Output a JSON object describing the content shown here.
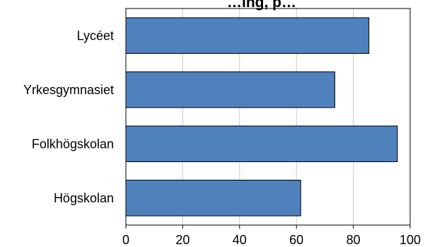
{
  "chart_data": {
    "type": "bar",
    "orientation": "horizontal",
    "title": "…ing, p…",
    "categories": [
      "Lycéet",
      "Yrkesgymnasiet",
      "Folkhögskolan",
      "Högskolan"
    ],
    "values": [
      85.5,
      73.5,
      95.5,
      61.5
    ],
    "xlim": [
      0,
      100
    ],
    "xticks": [
      "0",
      "20",
      "40",
      "60",
      "80",
      "100"
    ],
    "grid": "vertical",
    "bar_color": "#4f81bd",
    "bar_edge_color": "#000000",
    "grid_color": "#c8c8c8"
  }
}
